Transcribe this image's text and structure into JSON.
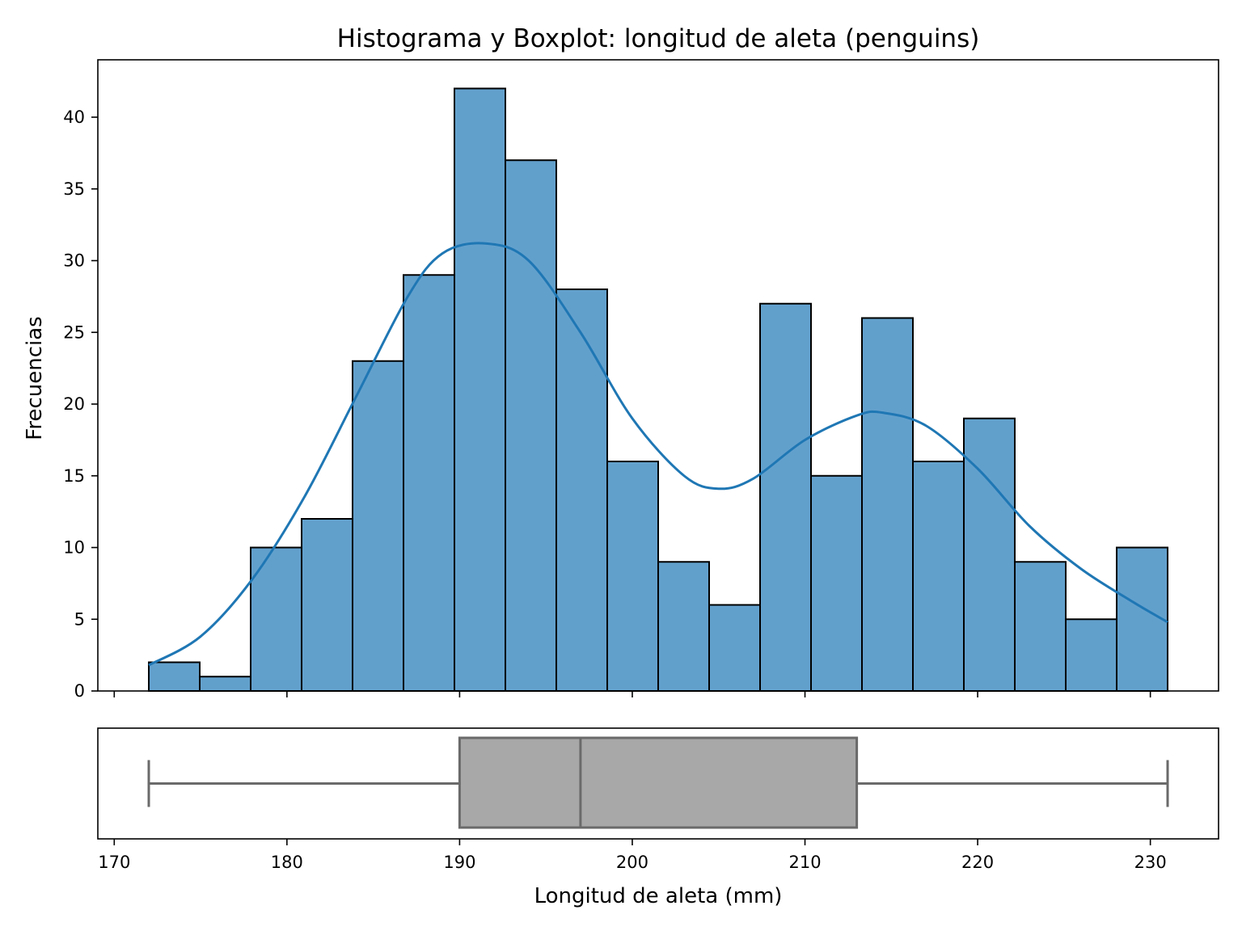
{
  "chart_data": [
    {
      "type": "histogram",
      "title": "Histograma y Boxplot: longitud de aleta (penguins)",
      "ylabel": "Frecuencias",
      "bin_edges": [
        172,
        174.95,
        177.9,
        180.85,
        183.8,
        186.75,
        189.7,
        192.65,
        195.6,
        198.55,
        201.5,
        204.45,
        207.4,
        210.35,
        213.3,
        216.25,
        219.2,
        222.15,
        225.1,
        228.05,
        231
      ],
      "counts": [
        2,
        1,
        10,
        12,
        23,
        29,
        42,
        37,
        28,
        16,
        9,
        6,
        27,
        15,
        26,
        16,
        19,
        9,
        5,
        10
      ],
      "bar_color": "#62a0cc",
      "kde": {
        "color": "#1f77b4",
        "x": [
          172,
          175,
          178,
          181,
          184,
          187,
          189,
          191.5,
          194,
          197,
          200,
          203,
          205,
          207,
          210,
          213,
          214.5,
          217,
          220,
          223,
          226,
          229,
          231
        ],
        "y": [
          1.8,
          3.8,
          7.8,
          13.5,
          20.5,
          27.5,
          30.5,
          31.2,
          30.0,
          25.0,
          19.0,
          15.0,
          14.1,
          14.8,
          17.5,
          19.2,
          19.4,
          18.5,
          15.5,
          11.5,
          8.5,
          6.2,
          4.8
        ]
      },
      "ylim": [
        0,
        44
      ],
      "yticks": [
        0,
        5,
        10,
        15,
        20,
        25,
        30,
        35,
        40
      ],
      "xlim": [
        169.05,
        233.95
      ]
    },
    {
      "type": "boxplot",
      "xlabel": "Longitud de aleta (mm)",
      "whisker_low": 172,
      "q1": 190,
      "median": 197,
      "q3": 213,
      "whisker_high": 231,
      "box_color": "#a8a8a8",
      "line_color": "#6a6a6a",
      "xticks": [
        170,
        180,
        190,
        200,
        210,
        220,
        230
      ],
      "xlim": [
        169.05,
        233.95
      ]
    }
  ]
}
